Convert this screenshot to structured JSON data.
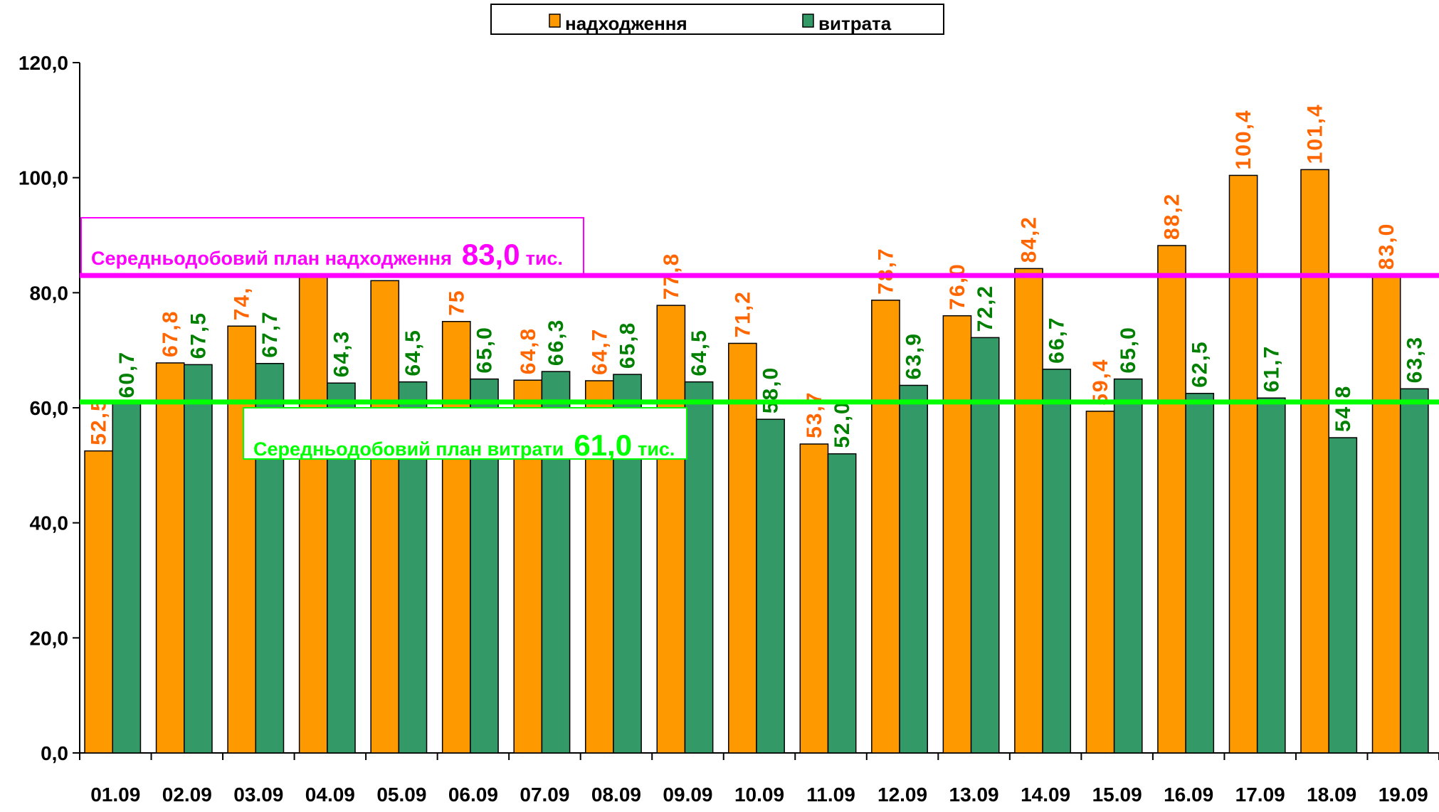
{
  "chart_data": {
    "type": "bar",
    "categories": [
      "01.09",
      "02.09",
      "03.09",
      "04.09",
      "05.09",
      "06.09",
      "07.09",
      "08.09",
      "09.09",
      "10.09",
      "11.09",
      "12.09",
      "13.09",
      "14.09",
      "15.09",
      "16.09",
      "17.09",
      "18.09",
      "19.09"
    ],
    "series": [
      {
        "name": "надходження",
        "color": "#ff9900",
        "label_color": "#ff6600",
        "values": [
          52.5,
          67.8,
          74.2,
          82.7,
          82.1,
          75.0,
          64.8,
          64.7,
          77.8,
          71.2,
          53.7,
          78.7,
          76.0,
          84.2,
          59.4,
          88.2,
          100.4,
          101.4,
          83.0
        ],
        "value_labels": [
          "52,5",
          "67,8",
          "74,",
          "82,7",
          "82,1",
          "75",
          "64,8",
          "64,7",
          "77,8",
          "71,2",
          "53,7",
          "78,7",
          "76,0",
          "84,2",
          "59,4",
          "88,2",
          "100,4",
          "101,4",
          "83,0"
        ]
      },
      {
        "name": "витрата",
        "color": "#339966",
        "label_color": "#008000",
        "values": [
          60.7,
          67.5,
          67.7,
          64.3,
          64.5,
          65.0,
          66.3,
          65.8,
          64.5,
          58.0,
          52.0,
          63.9,
          72.2,
          66.7,
          65.0,
          62.5,
          61.7,
          54.8,
          63.3
        ],
        "value_labels": [
          "60,7",
          "67,5",
          "67,7",
          "64,3",
          "64,5",
          "65,0",
          "66,3",
          "65,8",
          "64,5",
          "58,0",
          "52,0",
          "63,9",
          "72,2",
          "66,7",
          "65,0",
          "62,5",
          "61,7",
          "54,8",
          "63,3"
        ]
      }
    ],
    "ylim": [
      0,
      120
    ],
    "yticks": [
      {
        "value": 0,
        "label": "0,0"
      },
      {
        "value": 20,
        "label": "20,0"
      },
      {
        "value": 40,
        "label": "40,0"
      },
      {
        "value": 60,
        "label": "60,0"
      },
      {
        "value": 80,
        "label": "80,0"
      },
      {
        "value": 100,
        "label": "100,0"
      },
      {
        "value": 120,
        "label": "120,0"
      }
    ],
    "plan_lines": [
      {
        "text": "Середньодобовий план надходження",
        "value": 83.0,
        "value_label": "83,0",
        "unit": "тис.",
        "color": "#ff00ff"
      },
      {
        "text": "Середньодобовий план витрати",
        "value": 61.0,
        "value_label": "61,0",
        "unit": "тис.",
        "color": "#00ff00"
      }
    ],
    "legend": "top"
  }
}
